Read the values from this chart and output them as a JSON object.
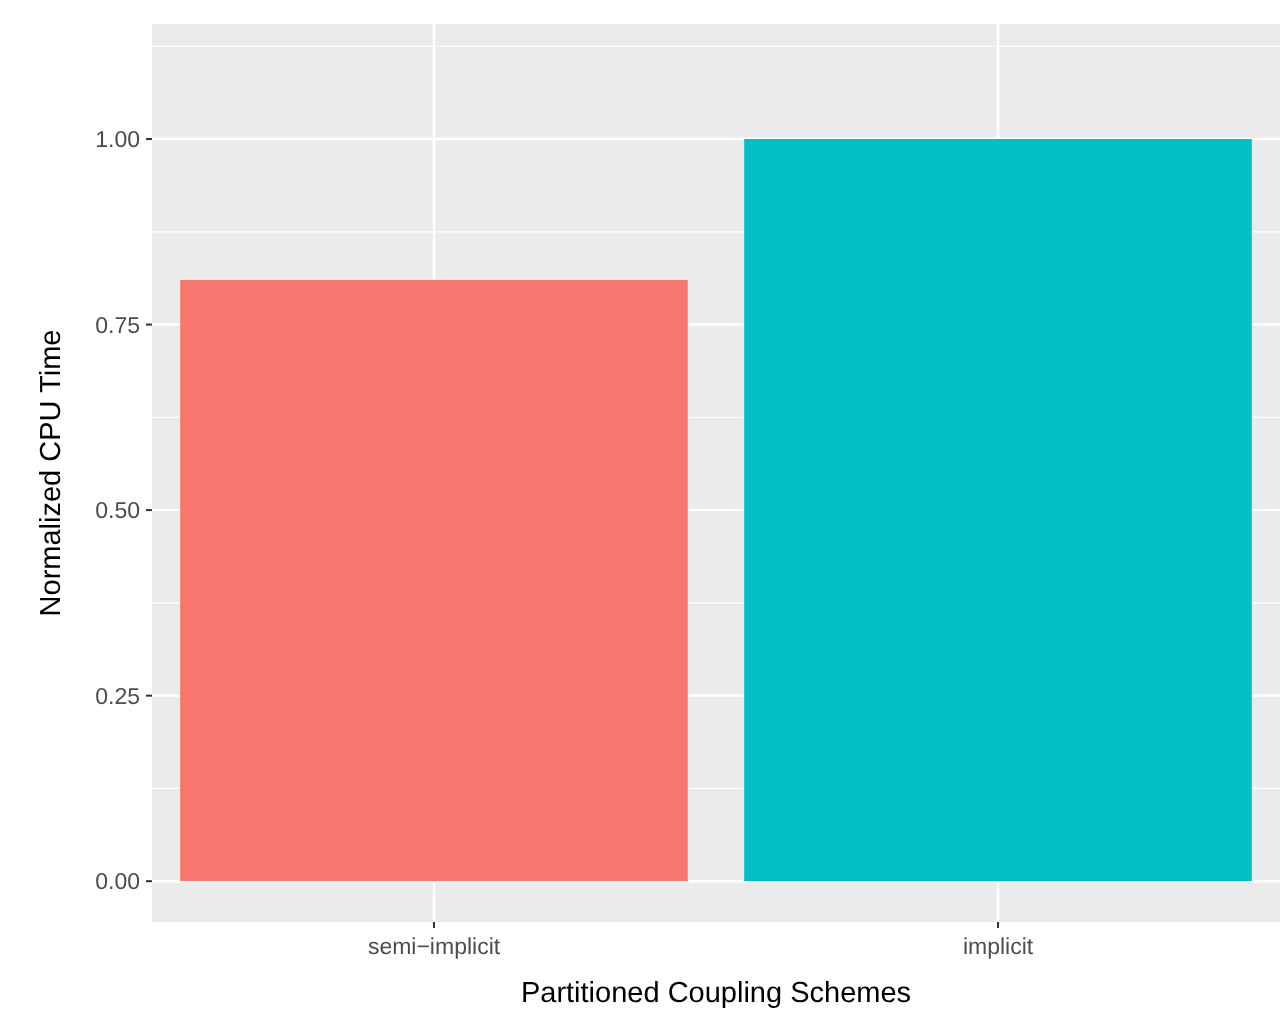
{
  "chart_data": {
    "type": "bar",
    "xlabel": "Partitioned Coupling Schemes",
    "ylabel": "Normalized CPU Time",
    "categories": [
      "semi−implicit",
      "implicit"
    ],
    "values": [
      0.81,
      1.0
    ],
    "colors": [
      "#f8766d",
      "#00bfc4"
    ],
    "ylim": [
      -0.055,
      1.155
    ],
    "yticks": [
      {
        "value": 0,
        "label": "0.00"
      },
      {
        "value": 0.25,
        "label": "0.25"
      },
      {
        "value": 0.5,
        "label": "0.50"
      },
      {
        "value": 0.75,
        "label": "0.75"
      },
      {
        "value": 1,
        "label": "1.00"
      }
    ],
    "grid": true
  }
}
